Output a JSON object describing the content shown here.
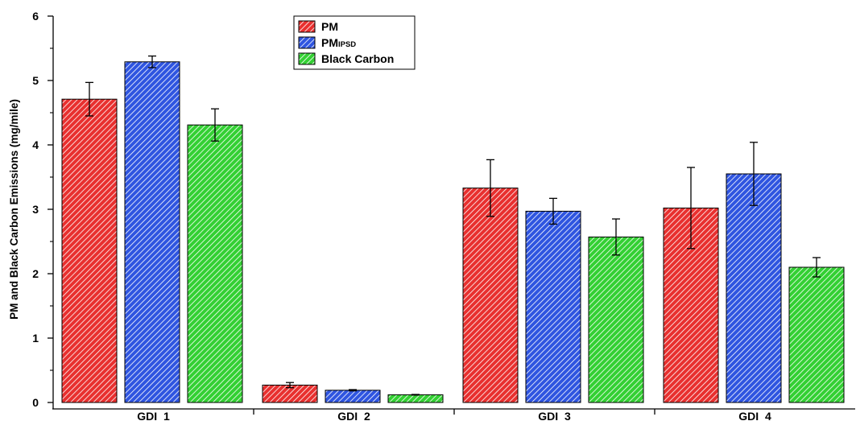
{
  "chart_data": {
    "type": "bar",
    "categories": [
      "GDI_1",
      "GDI_2",
      "GDI_3",
      "GDI_4"
    ],
    "series": [
      {
        "name": "PM",
        "name_main": "PM",
        "name_sub": "",
        "color": "#e8302f",
        "values": [
          4.71,
          0.27,
          3.33,
          3.02
        ],
        "errors": [
          0.26,
          0.04,
          0.44,
          0.63
        ]
      },
      {
        "name": "PMIPSD",
        "name_main": "PM",
        "name_sub": "IPSD",
        "color": "#2f55e0",
        "values": [
          5.29,
          0.19,
          2.97,
          3.55
        ],
        "errors": [
          0.09,
          0.01,
          0.2,
          0.49
        ]
      },
      {
        "name": "Black Carbon",
        "name_main": "Black Carbon",
        "name_sub": "",
        "color": "#33d033",
        "values": [
          4.31,
          0.12,
          2.57,
          2.1
        ],
        "errors": [
          0.25,
          0.005,
          0.28,
          0.15
        ]
      }
    ],
    "ylabel": "PM and Black Carbon Emissions (mg/mile)",
    "xlabel": "",
    "ylim": [
      0,
      6
    ],
    "yticks": [
      0,
      1,
      2,
      3,
      4,
      5,
      6
    ],
    "legend_position": "top-center",
    "grid": false,
    "fill_pattern": "diagonal-hatch"
  }
}
